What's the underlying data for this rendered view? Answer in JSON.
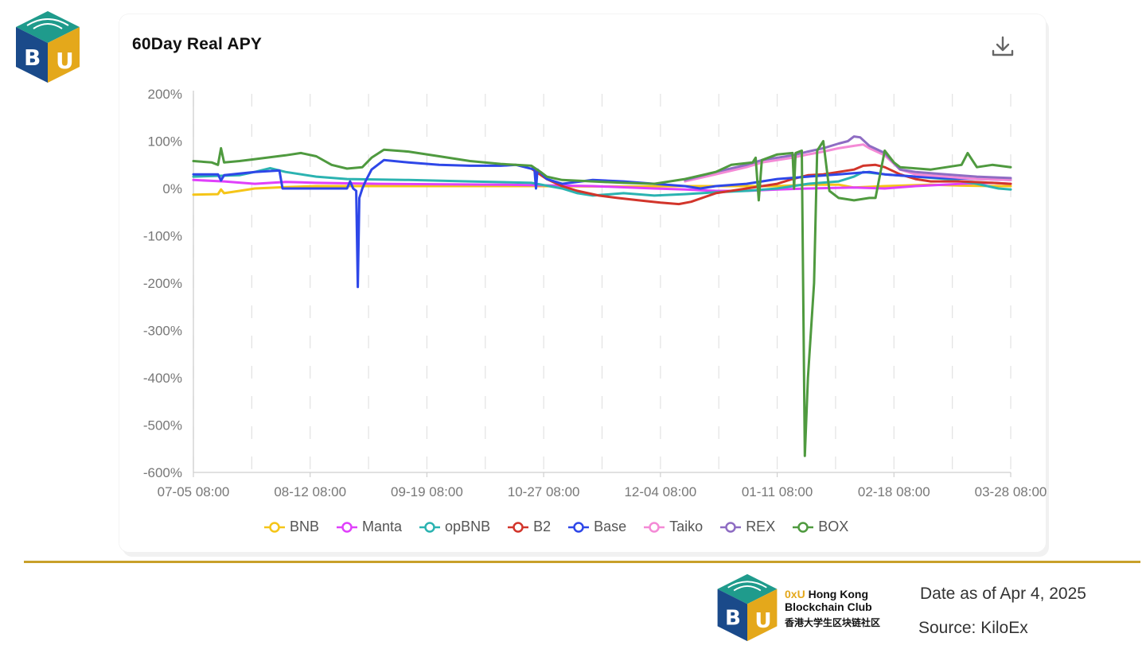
{
  "header": {
    "logo_text": "BU"
  },
  "card": {
    "title": "60Day Real APY",
    "download_icon": "download-icon"
  },
  "footer": {
    "club_line1_accent": "0xU",
    "club_line1_rest": " Hong Kong",
    "club_line2": "Blockchain Club",
    "club_cn": "香港大学生区块链社区",
    "date": "Date as of Apr 4, 2025",
    "source": "Source: KiloEx",
    "divider_color": "#c8a02a"
  },
  "chart_data": {
    "type": "line",
    "title": "60Day Real APY",
    "x_tick_labels": [
      "07-05 08:00",
      "08-12 08:00",
      "09-19 08:00",
      "10-27 08:00",
      "12-04 08:00",
      "01-11 08:00",
      "02-18 08:00",
      "03-28 08:00"
    ],
    "x_ticks": [
      0,
      38,
      76,
      114,
      152,
      190,
      228,
      266
    ],
    "xlim": [
      0,
      266
    ],
    "y_tick_labels": [
      "200%",
      "100%",
      "0%",
      "-100%",
      "-200%",
      "-300%",
      "-400%",
      "-500%",
      "-600%"
    ],
    "y_ticks": [
      200,
      100,
      0,
      -100,
      -200,
      -300,
      -400,
      -500,
      -600
    ],
    "ylim": [
      -600,
      200
    ],
    "ylabel": "",
    "xlabel": "",
    "grid": "vertical dashed",
    "legend_position": "bottom",
    "series": [
      {
        "name": "BNB",
        "color": "#f5c518",
        "points": [
          [
            0,
            -13
          ],
          [
            8,
            -12
          ],
          [
            9,
            -2
          ],
          [
            10,
            -10
          ],
          [
            15,
            -5
          ],
          [
            20,
            0
          ],
          [
            30,
            3
          ],
          [
            40,
            5
          ],
          [
            60,
            5
          ],
          [
            90,
            5
          ],
          [
            110,
            5
          ],
          [
            140,
            4
          ],
          [
            160,
            5
          ],
          [
            170,
            5
          ],
          [
            190,
            5
          ],
          [
            200,
            8
          ],
          [
            210,
            8
          ],
          [
            215,
            2
          ],
          [
            225,
            5
          ],
          [
            240,
            8
          ],
          [
            250,
            6
          ],
          [
            260,
            5
          ],
          [
            266,
            5
          ]
        ]
      },
      {
        "name": "Manta",
        "color": "#e040fb",
        "points": [
          [
            0,
            18
          ],
          [
            10,
            15
          ],
          [
            20,
            10
          ],
          [
            30,
            14
          ],
          [
            40,
            12
          ],
          [
            60,
            10
          ],
          [
            100,
            8
          ],
          [
            130,
            5
          ],
          [
            150,
            0
          ],
          [
            160,
            -2
          ],
          [
            170,
            -5
          ],
          [
            180,
            -5
          ],
          [
            190,
            -2
          ],
          [
            200,
            0
          ],
          [
            215,
            2
          ],
          [
            225,
            0
          ],
          [
            235,
            5
          ],
          [
            250,
            10
          ],
          [
            260,
            12
          ],
          [
            266,
            10
          ]
        ]
      },
      {
        "name": "opBNB",
        "color": "#2bb3b1",
        "points": [
          [
            0,
            25
          ],
          [
            15,
            28
          ],
          [
            20,
            35
          ],
          [
            25,
            43
          ],
          [
            30,
            35
          ],
          [
            40,
            25
          ],
          [
            50,
            20
          ],
          [
            70,
            18
          ],
          [
            90,
            15
          ],
          [
            110,
            12
          ],
          [
            120,
            0
          ],
          [
            125,
            -10
          ],
          [
            130,
            -15
          ],
          [
            140,
            -10
          ],
          [
            150,
            -15
          ],
          [
            160,
            -12
          ],
          [
            170,
            -8
          ],
          [
            180,
            -5
          ],
          [
            190,
            0
          ],
          [
            200,
            10
          ],
          [
            210,
            15
          ],
          [
            215,
            25
          ],
          [
            218,
            35
          ],
          [
            225,
            30
          ],
          [
            235,
            25
          ],
          [
            245,
            20
          ],
          [
            255,
            10
          ],
          [
            262,
            0
          ],
          [
            266,
            -2
          ]
        ]
      },
      {
        "name": "B2",
        "color": "#d2352b",
        "points": [
          [
            110,
            42
          ],
          [
            115,
            20
          ],
          [
            120,
            5
          ],
          [
            125,
            -5
          ],
          [
            132,
            -15
          ],
          [
            138,
            -20
          ],
          [
            145,
            -25
          ],
          [
            152,
            -30
          ],
          [
            158,
            -33
          ],
          [
            162,
            -28
          ],
          [
            170,
            -10
          ],
          [
            180,
            0
          ],
          [
            190,
            10
          ],
          [
            195,
            20
          ],
          [
            200,
            28
          ],
          [
            205,
            30
          ],
          [
            210,
            35
          ],
          [
            215,
            40
          ],
          [
            218,
            48
          ],
          [
            222,
            50
          ],
          [
            225,
            45
          ],
          [
            230,
            30
          ],
          [
            235,
            20
          ],
          [
            240,
            15
          ],
          [
            250,
            15
          ],
          [
            260,
            12
          ],
          [
            266,
            10
          ]
        ]
      },
      {
        "name": "Base",
        "color": "#2e47e8",
        "points": [
          [
            0,
            30
          ],
          [
            8,
            30
          ],
          [
            9,
            17
          ],
          [
            10,
            28
          ],
          [
            20,
            35
          ],
          [
            28,
            38
          ],
          [
            29,
            0
          ],
          [
            38,
            0
          ],
          [
            44,
            0
          ],
          [
            50,
            0
          ],
          [
            51,
            15
          ],
          [
            52,
            0
          ],
          [
            53,
            -5
          ],
          [
            53.5,
            -208
          ],
          [
            54,
            -20
          ],
          [
            55,
            0
          ],
          [
            56,
            15
          ],
          [
            58,
            40
          ],
          [
            62,
            60
          ],
          [
            70,
            55
          ],
          [
            80,
            50
          ],
          [
            90,
            48
          ],
          [
            100,
            48
          ],
          [
            105,
            50
          ],
          [
            111,
            40
          ],
          [
            111.5,
            0
          ],
          [
            112,
            40
          ],
          [
            115,
            20
          ],
          [
            120,
            10
          ],
          [
            130,
            18
          ],
          [
            140,
            15
          ],
          [
            150,
            10
          ],
          [
            160,
            5
          ],
          [
            165,
            0
          ],
          [
            170,
            5
          ],
          [
            180,
            10
          ],
          [
            190,
            20
          ],
          [
            200,
            25
          ],
          [
            210,
            30
          ],
          [
            220,
            35
          ],
          [
            225,
            30
          ],
          [
            235,
            25
          ],
          [
            245,
            22
          ],
          [
            255,
            20
          ],
          [
            266,
            18
          ]
        ]
      },
      {
        "name": "Taiko",
        "color": "#f48ad6",
        "points": [
          [
            160,
            15
          ],
          [
            170,
            30
          ],
          [
            180,
            45
          ],
          [
            185,
            55
          ],
          [
            190,
            60
          ],
          [
            195,
            65
          ],
          [
            200,
            72
          ],
          [
            205,
            78
          ],
          [
            210,
            85
          ],
          [
            215,
            90
          ],
          [
            218,
            93
          ],
          [
            220,
            85
          ],
          [
            225,
            70
          ],
          [
            230,
            40
          ],
          [
            235,
            30
          ],
          [
            245,
            25
          ],
          [
            255,
            20
          ],
          [
            266,
            18
          ]
        ]
      },
      {
        "name": "REX",
        "color": "#8e6cc3",
        "points": [
          [
            160,
            18
          ],
          [
            170,
            35
          ],
          [
            180,
            50
          ],
          [
            185,
            60
          ],
          [
            190,
            65
          ],
          [
            195,
            70
          ],
          [
            200,
            78
          ],
          [
            205,
            85
          ],
          [
            210,
            95
          ],
          [
            213,
            100
          ],
          [
            215,
            110
          ],
          [
            217,
            108
          ],
          [
            220,
            90
          ],
          [
            225,
            75
          ],
          [
            230,
            40
          ],
          [
            235,
            35
          ],
          [
            245,
            30
          ],
          [
            255,
            25
          ],
          [
            266,
            22
          ]
        ]
      },
      {
        "name": "BOX",
        "color": "#4f9a3f",
        "points": [
          [
            0,
            58
          ],
          [
            6,
            55
          ],
          [
            8,
            50
          ],
          [
            9,
            85
          ],
          [
            10,
            55
          ],
          [
            15,
            58
          ],
          [
            20,
            62
          ],
          [
            30,
            70
          ],
          [
            35,
            75
          ],
          [
            40,
            68
          ],
          [
            45,
            50
          ],
          [
            50,
            42
          ],
          [
            55,
            45
          ],
          [
            58,
            65
          ],
          [
            62,
            82
          ],
          [
            70,
            78
          ],
          [
            80,
            68
          ],
          [
            90,
            58
          ],
          [
            100,
            52
          ],
          [
            110,
            48
          ],
          [
            113,
            35
          ],
          [
            115,
            25
          ],
          [
            120,
            18
          ],
          [
            130,
            15
          ],
          [
            140,
            12
          ],
          [
            150,
            10
          ],
          [
            160,
            20
          ],
          [
            170,
            35
          ],
          [
            175,
            50
          ],
          [
            182,
            55
          ],
          [
            183,
            65
          ],
          [
            184,
            -25
          ],
          [
            185,
            60
          ],
          [
            190,
            72
          ],
          [
            195,
            75
          ],
          [
            195.5,
            0
          ],
          [
            196,
            75
          ],
          [
            198,
            80
          ],
          [
            199,
            -565
          ],
          [
            200,
            -400
          ],
          [
            202,
            -200
          ],
          [
            203,
            80
          ],
          [
            205,
            100
          ],
          [
            207,
            -5
          ],
          [
            210,
            -20
          ],
          [
            215,
            -25
          ],
          [
            220,
            -20
          ],
          [
            222,
            -20
          ],
          [
            225,
            80
          ],
          [
            228,
            55
          ],
          [
            230,
            45
          ],
          [
            240,
            40
          ],
          [
            250,
            50
          ],
          [
            252,
            75
          ],
          [
            255,
            45
          ],
          [
            260,
            50
          ],
          [
            266,
            45
          ]
        ]
      }
    ]
  }
}
